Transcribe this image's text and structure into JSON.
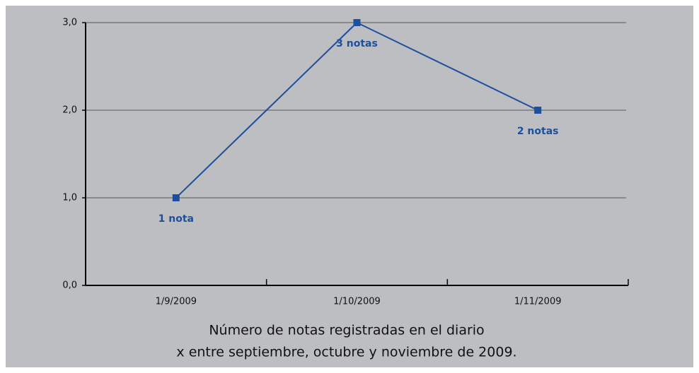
{
  "chart_data": {
    "type": "line",
    "caption": [
      "Número de notas registradas en el diario",
      "x entre septiembre, octubre y noviembre de 2009."
    ],
    "categories": [
      "1/9/2009",
      "1/10/2009",
      "1/11/2009"
    ],
    "series": [
      {
        "color": "#1d4f9f",
        "values": [
          1,
          3,
          2
        ],
        "value_labels": [
          "1 nota",
          "3 notas",
          "2 notas"
        ]
      }
    ],
    "ylim": [
      0,
      3
    ],
    "yticks": [
      {
        "value": 0,
        "label": "0,0"
      },
      {
        "value": 1,
        "label": "1,0"
      },
      {
        "value": 2,
        "label": "2,0"
      },
      {
        "value": 3,
        "label": "3,0"
      }
    ],
    "grid": true
  }
}
